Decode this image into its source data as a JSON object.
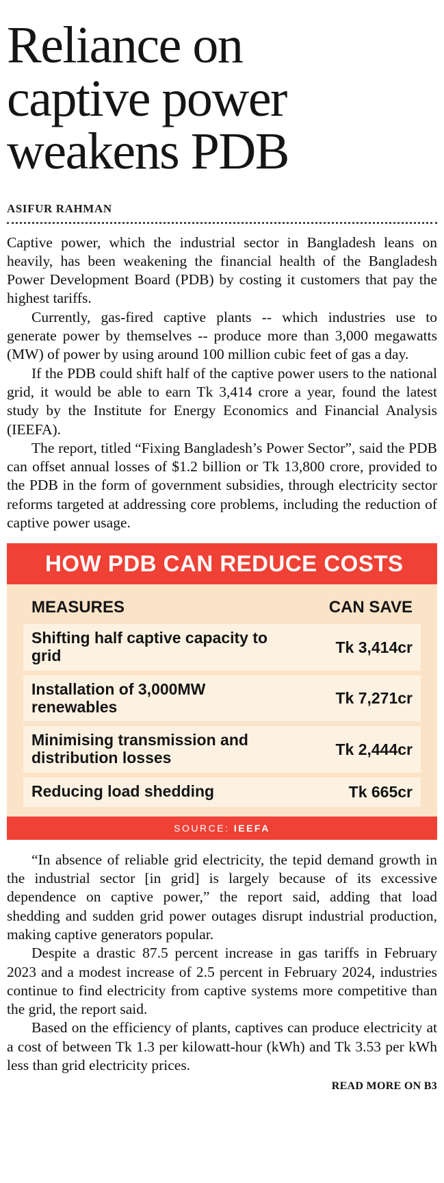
{
  "article": {
    "headline": "Reliance on captive power weakens PDB",
    "headline_lines": [
      "Reliance on",
      "captive power",
      "weakens PDB"
    ],
    "byline": "ASIFUR RAHMAN",
    "paragraphs_top": [
      "Captive power, which the industrial sector in Bangladesh leans on heavily, has been weakening the financial health of the Bangladesh Power Development Board (PDB) by costing it customers that pay the highest tariffs.",
      "Currently, gas-fired captive plants -- which industries use to generate power by themselves -- produce more than 3,000 megawatts (MW) of power by using around 100 million cubic feet of gas a day.",
      "If the PDB could shift half of the captive power users to the national grid, it would be able to earn Tk 3,414 crore a year, found the latest study by the Institute for Energy Economics and Financial Analysis (IEEFA).",
      "The report, titled “Fixing Bangladesh’s Power Sector”, said the PDB can offset annual losses of $1.2 billion or Tk 13,800 crore, provided to the PDB in the form of government subsidies, through electricity sector reforms targeted at addressing core problems, including the reduction of captive power usage."
    ],
    "paragraphs_bottom": [
      "“In absence of reliable grid electricity, the tepid demand growth in the industrial sector [in grid] is largely because of its excessive dependence on captive power,” the report said, adding that load shedding and sudden grid power outages disrupt industrial production, making captive generators popular.",
      "Despite a drastic 87.5 percent increase in gas tariffs in February 2023 and a modest increase of 2.5 percent in February 2024, industries continue to find electricity from captive systems more competitive than the grid, the report said.",
      "Based on the efficiency of plants, captives can produce electricity at a cost of between Tk 1.3 per kilowatt-hour (kWh) and Tk 3.53 per kWh less than grid electricity prices."
    ],
    "read_more": "READ MORE ON B3"
  },
  "infographic": {
    "title": "HOW PDB CAN REDUCE COSTS",
    "columns": [
      "MEASURES",
      "CAN SAVE"
    ],
    "rows": [
      {
        "measure": "Shifting half captive capacity to grid",
        "save": "Tk 3,414cr"
      },
      {
        "measure": "Installation of 3,000MW renewables",
        "save": "Tk 7,271cr"
      },
      {
        "measure": "Minimising transmission and distribution losses",
        "save": "Tk 2,444cr"
      },
      {
        "measure": "Reducing load shedding",
        "save": "Tk 665cr"
      }
    ],
    "source_label": "SOURCE:",
    "source_value": "IEEFA",
    "colors": {
      "header_bg": "#ef4136",
      "body_bg": "#fbe3c8",
      "row_bg": "#fdf2e2",
      "header_text": "#ffffff"
    }
  },
  "chart_data": {
    "type": "table",
    "title": "HOW PDB CAN REDUCE COSTS",
    "columns": [
      "MEASURES",
      "CAN SAVE"
    ],
    "rows": [
      [
        "Shifting half captive capacity to grid",
        "Tk 3,414cr"
      ],
      [
        "Installation of 3,000MW renewables",
        "Tk 7,271cr"
      ],
      [
        "Minimising transmission and distribution losses",
        "Tk 2,444cr"
      ],
      [
        "Reducing load shedding",
        "Tk 665cr"
      ]
    ],
    "values_tk_crore": [
      3414,
      7271,
      2444,
      665
    ],
    "source": "IEEFA"
  }
}
